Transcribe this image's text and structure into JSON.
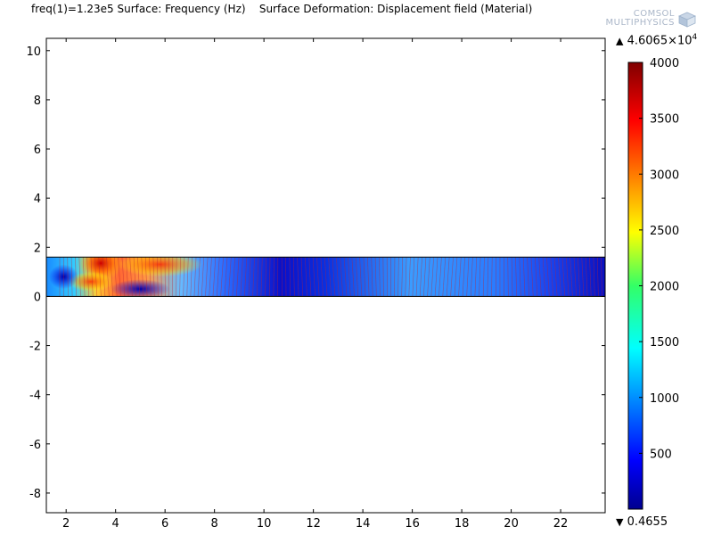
{
  "header": {
    "title": "freq(1)=1.23e5 Surface: Frequency (Hz)    Surface Deformation: Displacement field (Material)"
  },
  "logo": {
    "line1": "COMSOL",
    "line2": "MULTIPHYSICS"
  },
  "colorbar": {
    "max_text": "4.6065×10",
    "max_exp": "4",
    "min_text": "0.4655",
    "max_arrow": "▲",
    "min_arrow": "▼",
    "ticks": [
      "4000",
      "3500",
      "3000",
      "2500",
      "2000",
      "1500",
      "1000",
      "500"
    ],
    "tick_values": [
      4000,
      3500,
      3000,
      2500,
      2000,
      1500,
      1000,
      500
    ],
    "range": [
      0,
      4000
    ],
    "colormap": "rainbow/jet"
  },
  "chart_data": {
    "type": "heatmap",
    "title": "freq(1)=1.23e5 Surface: Frequency (Hz)    Surface Deformation: Displacement field (Material)",
    "xlabel": "",
    "ylabel": "",
    "xlim": [
      1.2,
      23.8
    ],
    "ylim": [
      -8.8,
      10.5
    ],
    "xticks": [
      "2",
      "4",
      "6",
      "8",
      "10",
      "12",
      "14",
      "16",
      "18",
      "20",
      "22"
    ],
    "xtick_values": [
      2,
      4,
      6,
      8,
      10,
      12,
      14,
      16,
      18,
      20,
      22
    ],
    "yticks": [
      "10",
      "8",
      "6",
      "4",
      "2",
      "0",
      "-2",
      "-4",
      "-6",
      "-8"
    ],
    "ytick_values": [
      10,
      8,
      6,
      4,
      2,
      0,
      -2,
      -4,
      -6,
      -8
    ],
    "domain": {
      "x": [
        1.2,
        23.8
      ],
      "y": [
        0,
        1.6
      ]
    },
    "grid": false,
    "colormap": "rainbow/jet",
    "value_range": [
      0.4655,
      46065
    ],
    "color_range": [
      0,
      4000
    ]
  }
}
